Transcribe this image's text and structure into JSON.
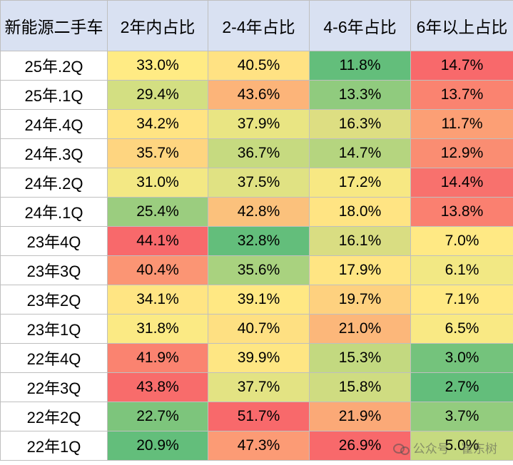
{
  "chart_data": {
    "type": "table",
    "columns": [
      "新能源二手车",
      "2年内占比",
      "2-4年占比",
      "4-6年占比",
      "6年以上占比"
    ],
    "rows": [
      {
        "period": "25年.2Q",
        "values": [
          "33.0%",
          "40.5%",
          "11.8%",
          "14.7%"
        ],
        "colors": [
          "#ffeb84",
          "#ffe283",
          "#63be7b",
          "#f8696b"
        ]
      },
      {
        "period": "25年.1Q",
        "values": [
          "29.4%",
          "43.6%",
          "13.3%",
          "13.7%"
        ],
        "colors": [
          "#d3df82",
          "#fcb479",
          "#90cb7e",
          "#fa8370"
        ]
      },
      {
        "period": "24年.4Q",
        "values": [
          "34.2%",
          "37.9%",
          "16.3%",
          "11.7%"
        ],
        "colors": [
          "#ffe483",
          "#e9e583",
          "#ddde82",
          "#fc9f75"
        ]
      },
      {
        "period": "24年.3Q",
        "values": [
          "35.7%",
          "36.7%",
          "14.7%",
          "12.9%"
        ],
        "colors": [
          "#fed580",
          "#c6da80",
          "#b5d57f",
          "#fa8d72"
        ]
      },
      {
        "period": "24年.2Q",
        "values": [
          "31.0%",
          "37.5%",
          "17.2%",
          "14.4%"
        ],
        "colors": [
          "#f3e884",
          "#e0e283",
          "#f7e883",
          "#f8716d"
        ]
      },
      {
        "period": "24年.1Q",
        "values": [
          "25.4%",
          "42.8%",
          "18.0%",
          "13.8%"
        ],
        "colors": [
          "#9bcd7f",
          "#fbc17c",
          "#ffe483",
          "#fa8070"
        ]
      },
      {
        "period": "23年4Q",
        "values": [
          "44.1%",
          "32.8%",
          "16.1%",
          "7.0%"
        ],
        "colors": [
          "#f8696b",
          "#63be7b",
          "#d9dd82",
          "#ffe984"
        ]
      },
      {
        "period": "23年3Q",
        "values": [
          "40.4%",
          "35.6%",
          "17.9%",
          "6.1%"
        ],
        "colors": [
          "#fb9574",
          "#a9d27f",
          "#ffe583",
          "#f2e884"
        ]
      },
      {
        "period": "23年2Q",
        "values": [
          "34.1%",
          "39.1%",
          "19.7%",
          "7.1%"
        ],
        "colors": [
          "#ffe583",
          "#ffe883",
          "#fed17f",
          "#ffe984"
        ]
      },
      {
        "period": "23年1Q",
        "values": [
          "31.8%",
          "40.7%",
          "21.0%",
          "6.5%"
        ],
        "colors": [
          "#fbea84",
          "#fee082",
          "#fcb77a",
          "#f9e984"
        ]
      },
      {
        "period": "22年4Q",
        "values": [
          "41.9%",
          "39.9%",
          "15.3%",
          "3.0%"
        ],
        "colors": [
          "#fa8370",
          "#fee683",
          "#c3d980",
          "#74c37c"
        ]
      },
      {
        "period": "22年3Q",
        "values": [
          "43.8%",
          "37.7%",
          "15.8%",
          "2.7%"
        ],
        "colors": [
          "#f86c6b",
          "#e3e383",
          "#cfdc81",
          "#63be7b"
        ]
      },
      {
        "period": "22年2Q",
        "values": [
          "22.7%",
          "51.7%",
          "21.9%",
          "3.7%"
        ],
        "colors": [
          "#7dc57c",
          "#f8696b",
          "#fba977",
          "#93cc7e"
        ]
      },
      {
        "period": "22年1Q",
        "values": [
          "20.9%",
          "47.3%",
          "26.9%",
          "5.0%"
        ],
        "colors": [
          "#63be7b",
          "#fc9b75",
          "#f8696b",
          "#c6da80"
        ]
      }
    ]
  },
  "watermark": {
    "text": "公众号 · 崔东树"
  }
}
